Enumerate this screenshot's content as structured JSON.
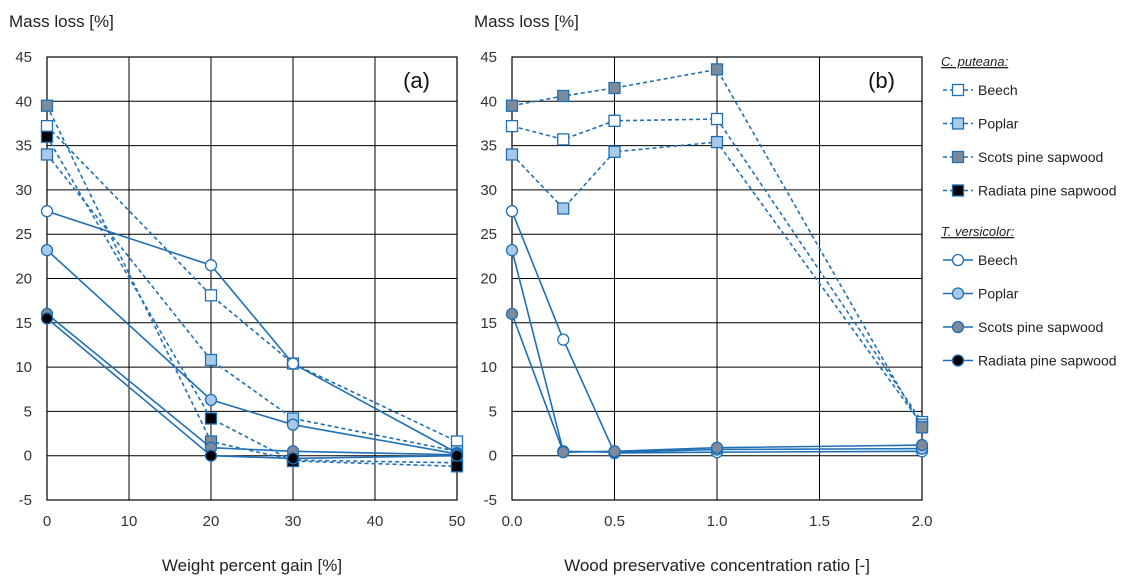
{
  "colors": {
    "line": "#1f6fb5",
    "grid": "#000000",
    "open_fill": "#ffffff",
    "light_fill": "#a9c9e8",
    "mid_fill": "#7d8a9a",
    "dark_fill": "#000000"
  },
  "chart_data": [
    {
      "type": "line",
      "panel_label": "(a)",
      "ylabel": "Mass loss [%]",
      "xlabel": "Weight percent gain [%]",
      "xlim": [
        0,
        50
      ],
      "ylim": [
        -5,
        45
      ],
      "xticks": [
        "0",
        "10",
        "20",
        "30",
        "40",
        "50"
      ],
      "yticks": [
        "-5",
        "0",
        "5",
        "10",
        "15",
        "20",
        "25",
        "30",
        "35",
        "40",
        "45"
      ],
      "grid": true,
      "x": [
        0,
        20,
        30,
        50
      ],
      "series": [
        {
          "group": "C. puteana",
          "name": "Beech",
          "marker": "square",
          "fill": "open",
          "dashed": true,
          "values": [
            37.2,
            18.1,
            10.4,
            1.6
          ]
        },
        {
          "group": "C. puteana",
          "name": "Poplar",
          "marker": "square",
          "fill": "light",
          "dashed": true,
          "values": [
            34.0,
            10.8,
            4.2,
            0.5
          ]
        },
        {
          "group": "C. puteana",
          "name": "Scots pine sapwood",
          "marker": "square",
          "fill": "mid",
          "dashed": true,
          "values": [
            39.5,
            1.6,
            -0.5,
            -0.8
          ]
        },
        {
          "group": "C. puteana",
          "name": "Radiata pine sapwood",
          "marker": "square",
          "fill": "dark",
          "dashed": true,
          "values": [
            36.0,
            4.2,
            -0.6,
            -1.2
          ]
        },
        {
          "group": "T. versicolor",
          "name": "Beech",
          "marker": "circle",
          "fill": "open",
          "dashed": false,
          "values": [
            27.6,
            21.5,
            10.4,
            0.3
          ]
        },
        {
          "group": "T. versicolor",
          "name": "Poplar",
          "marker": "circle",
          "fill": "light",
          "dashed": false,
          "values": [
            23.2,
            6.3,
            3.5,
            0.2
          ]
        },
        {
          "group": "T. versicolor",
          "name": "Scots pine sapwood",
          "marker": "circle",
          "fill": "mid",
          "dashed": false,
          "values": [
            16.0,
            0.9,
            0.5,
            0.1
          ]
        },
        {
          "group": "T. versicolor",
          "name": "Radiata pine sapwood",
          "marker": "circle",
          "fill": "dark",
          "dashed": false,
          "values": [
            15.5,
            0.0,
            -0.3,
            0.0
          ]
        }
      ]
    },
    {
      "type": "line",
      "panel_label": "(b)",
      "ylabel": "Mass loss [%]",
      "xlabel": "Wood preservative concentration ratio [-]",
      "xlim": [
        0,
        2
      ],
      "ylim": [
        -5,
        45
      ],
      "xticks": [
        "0.0",
        "0.5",
        "1.0",
        "1.5",
        "2.0"
      ],
      "yticks": [
        "-5",
        "0",
        "5",
        "10",
        "15",
        "20",
        "25",
        "30",
        "35",
        "40",
        "45"
      ],
      "grid": true,
      "series": [
        {
          "group": "C. puteana",
          "name": "Beech",
          "marker": "square",
          "fill": "open",
          "dashed": true,
          "x": [
            0,
            0.25,
            0.5,
            1.0,
            2.0
          ],
          "values": [
            37.2,
            35.7,
            37.8,
            38.0,
            3.8
          ]
        },
        {
          "group": "C. puteana",
          "name": "Poplar",
          "marker": "square",
          "fill": "light",
          "dashed": true,
          "x": [
            0,
            0.25,
            0.5,
            1.0,
            2.0
          ],
          "values": [
            34.0,
            27.9,
            34.3,
            35.4,
            3.5
          ]
        },
        {
          "group": "C. puteana",
          "name": "Scots pine sapwood",
          "marker": "square",
          "fill": "mid",
          "dashed": true,
          "x": [
            0,
            0.25,
            0.5,
            1.0,
            2.0
          ],
          "values": [
            39.5,
            40.6,
            41.5,
            43.6,
            3.2
          ]
        },
        {
          "group": "T. versicolor",
          "name": "Beech",
          "marker": "circle",
          "fill": "open",
          "dashed": false,
          "x": [
            0,
            0.25,
            0.5,
            1.0,
            2.0
          ],
          "values": [
            27.6,
            13.1,
            0.3,
            0.4,
            0.5
          ]
        },
        {
          "group": "T. versicolor",
          "name": "Poplar",
          "marker": "circle",
          "fill": "light",
          "dashed": false,
          "x": [
            0,
            0.25,
            0.5,
            1.0,
            2.0
          ],
          "values": [
            23.2,
            0.5,
            0.4,
            0.7,
            0.8
          ]
        },
        {
          "group": "T. versicolor",
          "name": "Scots pine sapwood",
          "marker": "circle",
          "fill": "mid",
          "dashed": false,
          "x": [
            0,
            0.25,
            0.5,
            1.0,
            2.0
          ],
          "values": [
            16.0,
            0.4,
            0.5,
            0.9,
            1.2
          ]
        }
      ]
    }
  ],
  "legend": {
    "groups": [
      {
        "title": "C. puteana:",
        "marker": "square",
        "dashed": true,
        "items": [
          {
            "label": "Beech",
            "fill": "open"
          },
          {
            "label": "Poplar",
            "fill": "light"
          },
          {
            "label": "Scots pine sapwood",
            "fill": "mid"
          },
          {
            "label": "Radiata pine sapwood",
            "fill": "dark"
          }
        ]
      },
      {
        "title": "T. versicolor:",
        "marker": "circle",
        "dashed": false,
        "items": [
          {
            "label": "Beech",
            "fill": "open"
          },
          {
            "label": "Poplar",
            "fill": "light"
          },
          {
            "label": "Scots pine sapwood",
            "fill": "mid"
          },
          {
            "label": "Radiata pine sapwood",
            "fill": "dark"
          }
        ]
      }
    ]
  }
}
